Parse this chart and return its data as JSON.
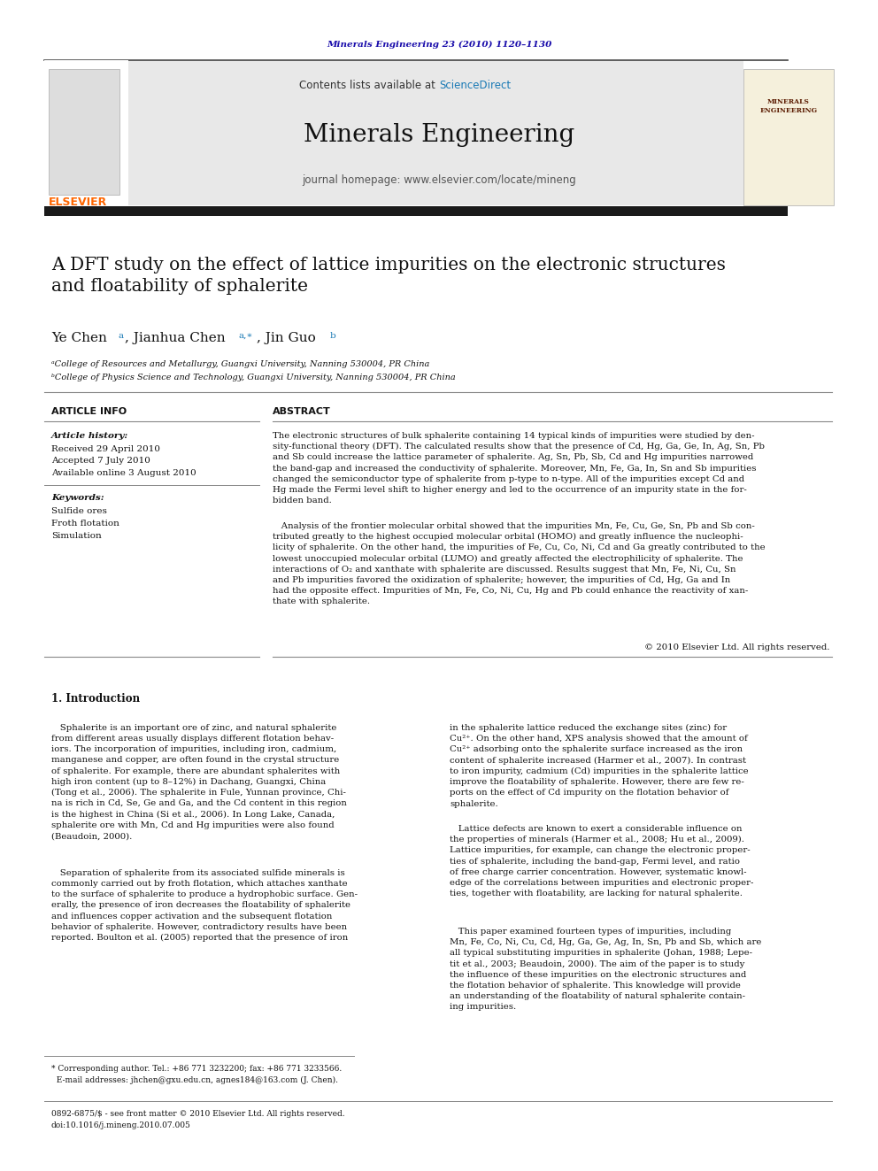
{
  "page_width": 9.92,
  "page_height": 13.23,
  "bg_color": "#ffffff",
  "journal_ref": "Minerals Engineering 23 (2010) 1120–1130",
  "journal_ref_color": "#1a0dab",
  "contents_text": "Contents lists available at ",
  "science_direct": "ScienceDirect",
  "science_direct_color": "#1a7ab5",
  "journal_name": "Minerals Engineering",
  "journal_homepage": "journal homepage: www.elsevier.com/locate/mineng",
  "title": "A DFT study on the effect of lattice impurities on the electronic structures\nand floatability of sphalerite",
  "affiliation_a": "ᵃCollege of Resources and Metallurgy, Guangxi University, Nanning 530004, PR China",
  "affiliation_b": "ᵇCollege of Physics Science and Technology, Guangxi University, Nanning 530004, PR China",
  "article_info_header": "ARTICLE INFO",
  "abstract_header": "ABSTRACT",
  "article_history_label": "Article history:",
  "received": "Received 29 April 2010",
  "accepted": "Accepted 7 July 2010",
  "available": "Available online 3 August 2010",
  "keywords_label": "Keywords:",
  "keywords": [
    "Sulfide ores",
    "Froth flotation",
    "Simulation"
  ],
  "abstract_text": "The electronic structures of bulk sphalerite containing 14 typical kinds of impurities were studied by den-\nsity-functional theory (DFT). The calculated results show that the presence of Cd, Hg, Ga, Ge, In, Ag, Sn, Pb\nand Sb could increase the lattice parameter of sphalerite. Ag, Sn, Pb, Sb, Cd and Hg impurities narrowed\nthe band-gap and increased the conductivity of sphalerite. Moreover, Mn, Fe, Ga, In, Sn and Sb impurities\nchanged the semiconductor type of sphalerite from p-type to n-type. All of the impurities except Cd and\nHg made the Fermi level shift to higher energy and led to the occurrence of an impurity state in the for-\nbidden band.",
  "abstract_text2": "   Analysis of the frontier molecular orbital showed that the impurities Mn, Fe, Cu, Ge, Sn, Pb and Sb con-\ntributed greatly to the highest occupied molecular orbital (HOMO) and greatly influence the nucleophi-\nlicity of sphalerite. On the other hand, the impurities of Fe, Cu, Co, Ni, Cd and Ga greatly contributed to the\nlowest unoccupied molecular orbital (LUMO) and greatly affected the electrophilicity of sphalerite. The\ninteractions of O₂ and xanthate with sphalerite are discussed. Results suggest that Mn, Fe, Ni, Cu, Sn\nand Pb impurities favored the oxidization of sphalerite; however, the impurities of Cd, Hg, Ga and In\nhad the opposite effect. Impurities of Mn, Fe, Co, Ni, Cu, Hg and Pb could enhance the reactivity of xan-\nthate with sphalerite.",
  "copyright": "© 2010 Elsevier Ltd. All rights reserved.",
  "section1_header": "1. Introduction",
  "intro_col1": "   Sphalerite is an important ore of zinc, and natural sphalerite\nfrom different areas usually displays different flotation behav-\niors. The incorporation of impurities, including iron, cadmium,\nmanganese and copper, are often found in the crystal structure\nof sphalerite. For example, there are abundant sphalerites with\nhigh iron content (up to 8–12%) in Dachang, Guangxi, China\n(Tong et al., 2006). The sphalerite in Fule, Yunnan province, Chi-\nna is rich in Cd, Se, Ge and Ga, and the Cd content in this region\nis the highest in China (Si et al., 2006). In Long Lake, Canada,\nsphalerite ore with Mn, Cd and Hg impurities were also found\n(Beaudoin, 2000).",
  "intro_col1_b": "   Separation of sphalerite from its associated sulfide minerals is\ncommonly carried out by froth flotation, which attaches xanthate\nto the surface of sphalerite to produce a hydrophobic surface. Gen-\nerally, the presence of iron decreases the floatability of sphalerite\nand influences copper activation and the subsequent flotation\nbehavior of sphalerite. However, contradictory results have been\nreported. Boulton et al. (2005) reported that the presence of iron",
  "intro_col2": "in the sphalerite lattice reduced the exchange sites (zinc) for\nCu²⁺. On the other hand, XPS analysis showed that the amount of\nCu²⁺ adsorbing onto the sphalerite surface increased as the iron\ncontent of sphalerite increased (Harmer et al., 2007). In contrast\nto iron impurity, cadmium (Cd) impurities in the sphalerite lattice\nimprove the floatability of sphalerite. However, there are few re-\nports on the effect of Cd impurity on the flotation behavior of\nsphalerite.",
  "intro_col2_b": "   Lattice defects are known to exert a considerable influence on\nthe properties of minerals (Harmer et al., 2008; Hu et al., 2009).\nLattice impurities, for example, can change the electronic proper-\nties of sphalerite, including the band-gap, Fermi level, and ratio\nof free charge carrier concentration. However, systematic knowl-\nedge of the correlations between impurities and electronic proper-\nties, together with floatability, are lacking for natural sphalerite.",
  "intro_col2_c": "   This paper examined fourteen types of impurities, including\nMn, Fe, Co, Ni, Cu, Cd, Hg, Ga, Ge, Ag, In, Sn, Pb and Sb, which are\nall typical substituting impurities in sphalerite (Johan, 1988; Lepe-\ntit et al., 2003; Beaudoin, 2000). The aim of the paper is to study\nthe influence of these impurities on the electronic structures and\nthe flotation behavior of sphalerite. This knowledge will provide\nan understanding of the floatability of natural sphalerite contain-\ning impurities.",
  "footnote1": "* Corresponding author. Tel.: +86 771 3232200; fax: +86 771 3233566.",
  "footnote2": "  E-mail addresses: jhchen@gxu.edu.cn, agnes184@163.com (J. Chen).",
  "footnote3": "0892-6875/$ - see front matter © 2010 Elsevier Ltd. All rights reserved.",
  "footnote4": "doi:10.1016/j.mineng.2010.07.005",
  "header_bg": "#e8e8e8",
  "black_bar_color": "#1a1a1a",
  "divider_color": "#333333",
  "link_color": "#1a7ab5",
  "elsevier_orange": "#FF6600"
}
